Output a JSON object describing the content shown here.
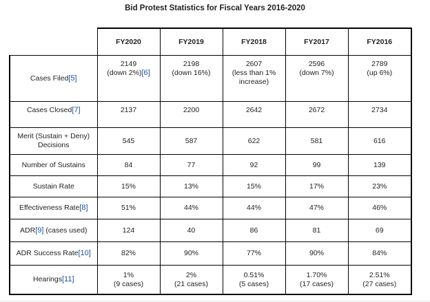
{
  "title": "Bid Protest Statistics for Fiscal Years 2016-2020",
  "columns": [
    "FY2020",
    "FY2019",
    "FY2018",
    "FY2017",
    "FY2016"
  ],
  "rows": [
    {
      "label": "Cases Filed",
      "fn": "[5]",
      "cells": [
        {
          "line1": "2149",
          "line2": "(down 2%)",
          "fn": "[6]"
        },
        {
          "line1": "2198",
          "line2": "(down 16%)"
        },
        {
          "line1": "2607",
          "line2": "(less than 1%",
          "line3": "increase)"
        },
        {
          "line1": "2596",
          "line2": "(down 7%)"
        },
        {
          "line1": "2789",
          "line2": "(up 6%)"
        }
      ]
    },
    {
      "label": "Cases Closed",
      "fn": "[7]",
      "cells": [
        "2137",
        "2200",
        "2642",
        "2672",
        "2734"
      ]
    },
    {
      "label1": "Merit (Sustain + Deny)",
      "label2": "Decisions",
      "cells": [
        "545",
        "587",
        "622",
        "581",
        "616"
      ]
    },
    {
      "label": "Number of Sustains",
      "cells": [
        "84",
        "77",
        "92",
        "99",
        "139"
      ]
    },
    {
      "label": "Sustain Rate",
      "cells": [
        "15%",
        "13%",
        "15%",
        "17%",
        "23%"
      ]
    },
    {
      "label": "Effectiveness Rate",
      "fn": "[8]",
      "cells": [
        "51%",
        "44%",
        "44%",
        "47%",
        "46%"
      ]
    },
    {
      "label": "ADR",
      "fn": "[9]",
      "label_suffix": " (cases used)",
      "cells": [
        "124",
        "40",
        "86",
        "81",
        "69"
      ]
    },
    {
      "label": "ADR Success Rate",
      "fn": "[10]",
      "cells": [
        "82%",
        "90%",
        "77%",
        "90%",
        "84%"
      ]
    },
    {
      "label": "Hearings",
      "fn": "[11]",
      "cells": [
        {
          "line1": "1%",
          "line2": "(9 cases)"
        },
        {
          "line1": "2%",
          "line2": "(21 cases)"
        },
        {
          "line1": "0.51%",
          "line2": "(5 cases)"
        },
        {
          "line1": "1.70%",
          "line2": "(17 cases)"
        },
        {
          "line1": "2.51%",
          "line2": "(27 cases)"
        }
      ]
    }
  ]
}
